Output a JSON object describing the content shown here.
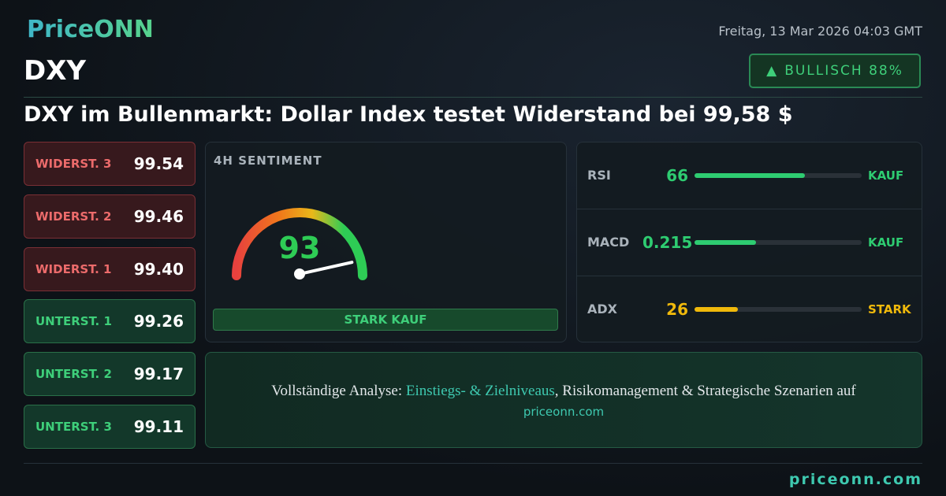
{
  "header": {
    "logo": "PriceONN",
    "date": "Freitag, 13 Mar 2026 04:03 GMT",
    "symbol": "DXY",
    "badge": "BULLISCH 88%"
  },
  "headline": "DXY im Bullenmarkt: Dollar Index testet Widerstand bei 99,58 $",
  "levels": [
    {
      "label": "WIDERST. 3",
      "value": "99.54",
      "kind": "resistance"
    },
    {
      "label": "WIDERST. 2",
      "value": "99.46",
      "kind": "resistance"
    },
    {
      "label": "WIDERST. 1",
      "value": "99.40",
      "kind": "resistance"
    },
    {
      "label": "UNTERST. 1",
      "value": "99.26",
      "kind": "support"
    },
    {
      "label": "UNTERST. 2",
      "value": "99.17",
      "kind": "support"
    },
    {
      "label": "UNTERST. 3",
      "value": "99.11",
      "kind": "support"
    }
  ],
  "sentiment": {
    "title": "4H SENTIMENT",
    "score": 93,
    "score_range": [
      0,
      100
    ],
    "verdict": "STARK KAUF"
  },
  "indicators": [
    {
      "name": "RSI",
      "value": 66,
      "signal": "KAUF",
      "color": "#2ecc71"
    },
    {
      "name": "MACD",
      "value": "0.215",
      "signal": "KAUF",
      "color": "#2ecc71"
    },
    {
      "name": "ADX",
      "value": 26,
      "signal": "STARK",
      "color": "#f0b90b"
    }
  ],
  "footer": {
    "lead": "Vollständige Analyse: ",
    "highlight": "Einstiegs- & Zielniveaus",
    "rest": ", Risikomanagement & Strategische Szenarien auf",
    "site": "priceonn.com",
    "brand": "priceonn.com"
  }
}
